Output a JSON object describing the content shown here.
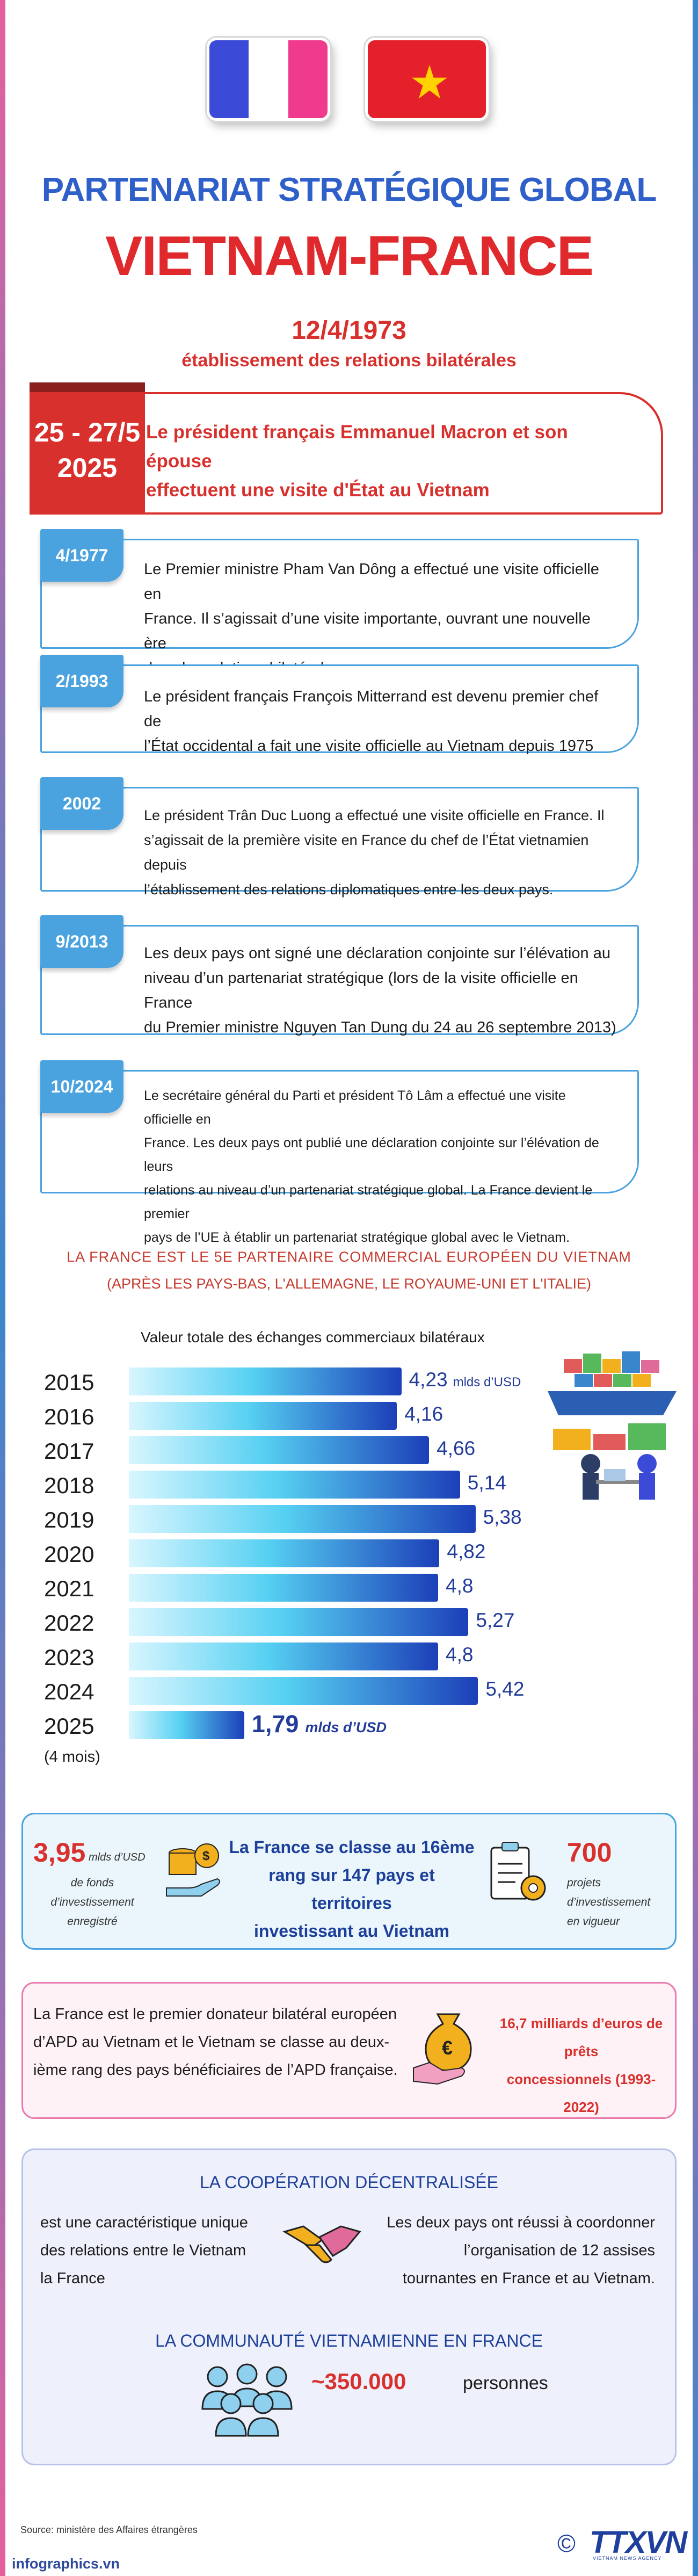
{
  "colors": {
    "accent_blue": "#2f5fc8",
    "accent_red": "#d8312d",
    "timeline_blue": "#4aa3df",
    "france_blue": "#3b4bd8",
    "france_red": "#ef3a8e",
    "vietnam_red": "#e4202b",
    "vietnam_star": "#ffd200"
  },
  "header": {
    "title_line1": "PARTENARIAT STRATÉGIQUE GLOBAL",
    "title_line2": "VIETNAM-FRANCE",
    "date": "12/4/1973",
    "date_caption": "établissement des relations bilatérales"
  },
  "highlight_event": {
    "date_line1": "25 - 27/5",
    "date_line2": "2025",
    "text_line1": "Le président français Emmanuel Macron et son épouse",
    "text_line2": "effectuent une visite d'État au Vietnam"
  },
  "timeline": [
    {
      "date": "4/1977",
      "lines": [
        "Le Premier ministre Pham Van Dông a effectué une visite officielle en",
        "France. Il s’agissait d’une visite importante, ouvrant une nouvelle ère",
        "dans les relations bilatérales."
      ]
    },
    {
      "date": "2/1993",
      "lines": [
        "Le président français François Mitterrand est devenu premier chef de",
        "l’État occidental a fait une visite officielle au Vietnam depuis 1975"
      ]
    },
    {
      "date": "2002",
      "lines": [
        "Le président Trân Duc Luong a effectué une visite officielle en France. Il",
        "s’agissait de la première visite en France du chef de l’État vietnamien depuis",
        "l’établissement des relations diplomatiques entre les deux pays."
      ]
    },
    {
      "date": "9/2013",
      "lines": [
        "Les deux pays ont signé une déclaration conjointe sur l’élévation au",
        "niveau d’un partenariat stratégique (lors de la visite officielle en France",
        "du Premier ministre Nguyen Tan Dung du 24 au 26 septembre 2013)"
      ]
    },
    {
      "date": "10/2024",
      "lines": [
        "Le secrétaire général du Parti et président Tô Lâm a effectué une visite officielle en",
        "France. Les deux pays ont publié une déclaration conjointe sur l’élévation de leurs",
        "relations au niveau d’un partenariat stratégique global. La France devient le premier",
        "pays de l’UE à établir un partenariat stratégique global avec le Vietnam."
      ]
    }
  ],
  "trade": {
    "title_line1": "LA FRANCE EST LE 5E PARTENAIRE COMMERCIAL EUROPÉEN DU VIETNAM",
    "title_line2": "(APRÈS LES PAYS-BAS, L'ALLEMAGNE, LE ROYAUME-UNI ET L'ITALIE)",
    "label": "Valeur totale des échanges commerciaux bilatéraux",
    "unit_first": "mlds d’USD",
    "unit_last": "mlds d’USD",
    "partial_note": "(4 mois)"
  },
  "chart_data": {
    "type": "bar",
    "orientation": "horizontal",
    "ylabel": "Valeur totale des échanges commerciaux bilatéraux",
    "unit": "mlds d’USD",
    "categories": [
      "2015",
      "2016",
      "2017",
      "2018",
      "2019",
      "2020",
      "2021",
      "2022",
      "2023",
      "2024",
      "2025"
    ],
    "values": [
      4.23,
      4.16,
      4.66,
      5.14,
      5.38,
      4.82,
      4.8,
      5.27,
      4.8,
      5.42,
      1.79
    ],
    "value_labels": [
      "4,23",
      "4,16",
      "4,66",
      "5,14",
      "5,38",
      "4,82",
      "4,8",
      "5,27",
      "4,8",
      "5,42",
      "1,79"
    ],
    "xlim": [
      0,
      5.6
    ]
  },
  "investment": {
    "amount": "3,95",
    "amount_unit": "mlds d’USD",
    "amount_caption_lines": [
      "de fonds d’investissement",
      "enregistré"
    ],
    "rank_lines": [
      "La France se classe au 16ème",
      "rang sur 147 pays et territoires",
      "investissant au Vietnam"
    ],
    "projects": "700",
    "projects_caption_lines": [
      "projets d’investissement",
      "en vigueur"
    ]
  },
  "oda": {
    "text_lines": [
      "La France est le premier donateur bilatéral européen",
      "d’APD au Vietnam et le Vietnam se classe au deux-",
      "ième rang des pays bénéficiaires de l’APD française."
    ],
    "amount_lines": [
      "16,7 milliards d’euros de prêts",
      "concessionnels (1993-2022)"
    ]
  },
  "cooperation": {
    "title": "LA COOPÉRATION DÉCENTRALISÉE",
    "left_lines": [
      "est une caractéristique unique",
      "des relations entre le Vietnam",
      "la France"
    ],
    "right_lines": [
      "Les deux pays ont réussi à coordonner",
      "l’organisation de 12 assises",
      "tournantes en France et au Vietnam."
    ]
  },
  "community": {
    "title": "LA COMMUNAUTÉ VIETNAMIENNE EN FRANCE",
    "count": "~350.000",
    "unit": "personnes"
  },
  "footer": {
    "source": "Source: ministère des Affaires étrangères",
    "site": "infographics.vn",
    "logo_symbol": "©",
    "logo_text": "TTXVN",
    "logo_sub": "VIETNAM NEWS AGENCY"
  }
}
